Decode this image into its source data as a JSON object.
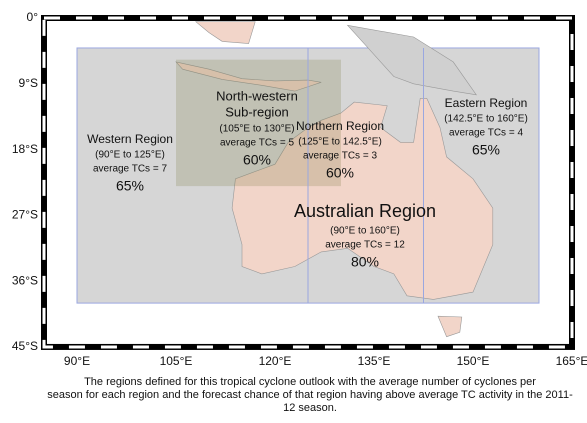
{
  "map": {
    "lat_labels": [
      "0°",
      "9°S",
      "18°S",
      "27°S",
      "36°S",
      "45°S"
    ],
    "lon_labels": [
      "90°E",
      "105°E",
      "120°E",
      "135°E",
      "150°E",
      "165°E"
    ],
    "regions": [
      {
        "name_lines": [
          "Western Region"
        ],
        "range": "(90°E to 125°E)",
        "average": "average TCs = 7",
        "chance": "65%"
      },
      {
        "name_lines": [
          "North-western",
          "Sub-region"
        ],
        "range": "(105°E to 130°E)",
        "average": "average TCs = 5",
        "chance": "60%"
      },
      {
        "name_lines": [
          "Northern Region"
        ],
        "range": "(125°E to 142.5°E)",
        "average": "average TCs = 3",
        "chance": "60%"
      },
      {
        "name_lines": [
          "Eastern Region"
        ],
        "range": "(142.5°E to 160°E)",
        "average": "average TCs = 4",
        "chance": "65%"
      },
      {
        "name_lines": [
          "Australian Region"
        ],
        "range": "(90°E to 160°E)",
        "average": "average TCs = 12",
        "chance": "80%"
      }
    ],
    "caption_lines": [
      "The regions defined for this tropical cyclone outlook with the average number of cyclones per",
      "season for each region and the forecast chance of that region having above average TC activity in the 2011-",
      "12 season."
    ]
  }
}
